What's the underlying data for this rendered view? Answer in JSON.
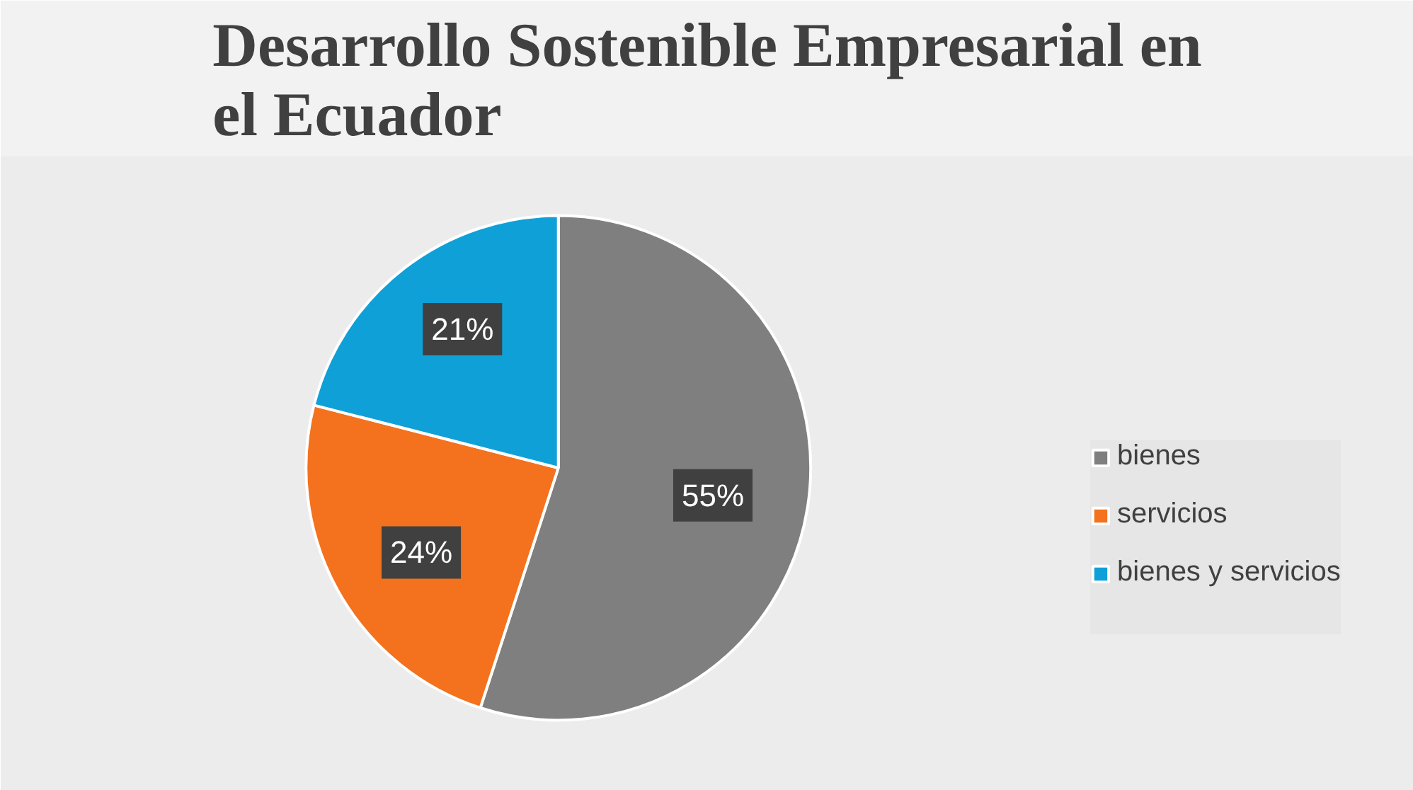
{
  "chart_data": {
    "type": "pie",
    "title": "Desarrollo Sostenible Empresarial en el Ecuador",
    "categories": [
      "bienes",
      "servicios",
      "bienes y servicios",
      null
    ],
    "values": [
      55,
      24,
      21,
      0
    ],
    "colors": [
      "#7f7f80",
      "#f4711d",
      "#0fa0d8",
      "#78a040"
    ],
    "value_labels": [
      "55%",
      "24%",
      "21%",
      null
    ],
    "legend": "right"
  }
}
